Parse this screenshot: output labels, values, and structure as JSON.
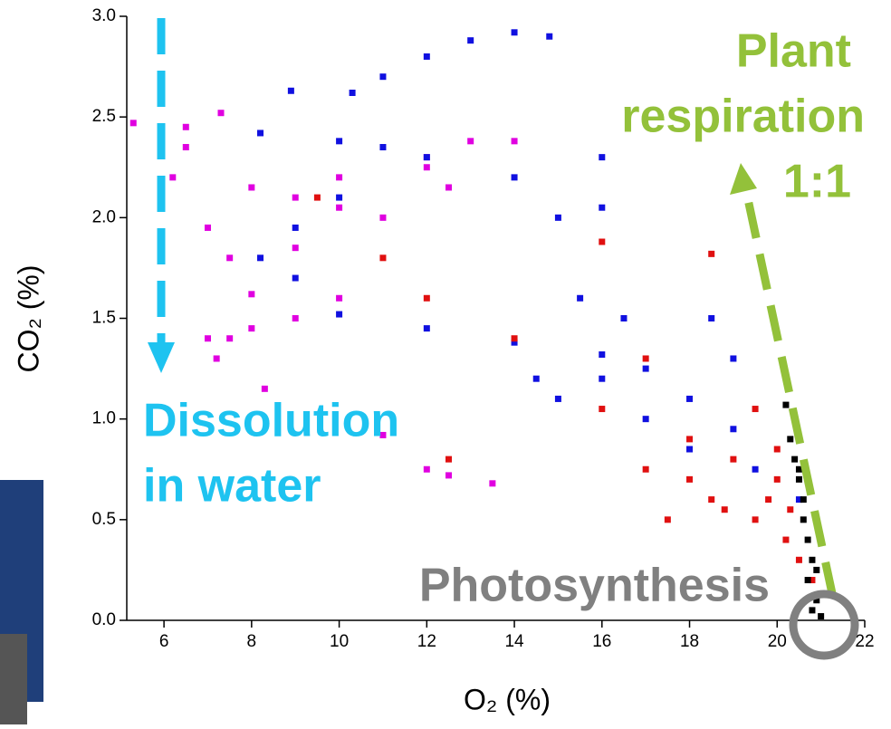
{
  "chart_data": {
    "type": "scatter",
    "x_label": "O₂ (%)",
    "y_label": "CO₂ (%)",
    "annotations": [
      "Plant",
      "respiration",
      "1:1",
      "Dissolution",
      "in water",
      "Photosynthesis"
    ],
    "xlim": [
      5.15,
      22
    ],
    "ylim": [
      0,
      3
    ],
    "xticks": [
      6,
      8,
      10,
      12,
      14,
      16,
      18,
      20,
      22
    ],
    "yticks": [
      {
        "value": 0,
        "label": "0.0"
      },
      {
        "value": 0.5,
        "label": "0.5"
      },
      {
        "value": 1,
        "label": "1.0"
      },
      {
        "value": 1.5,
        "label": "1.5"
      },
      {
        "value": 2,
        "label": "2.0"
      },
      {
        "value": 2.5,
        "label": "2.5"
      },
      {
        "value": 3,
        "label": "3.0"
      }
    ],
    "series": [
      {
        "color": "#e000e0",
        "x": [
          5.3,
          6.5,
          7.3,
          6.5,
          6.2,
          8,
          10,
          12,
          13,
          14,
          12,
          9,
          10,
          12.5,
          11,
          7,
          7.5,
          9,
          10,
          9,
          8,
          7.5,
          7.2,
          8,
          8.3,
          7,
          11,
          12,
          13.5,
          12.5
        ],
        "values": [
          2.47,
          2.45,
          2.52,
          2.35,
          2.2,
          2.15,
          2.2,
          2.25,
          2.38,
          2.38,
          2.3,
          2.1,
          2.05,
          2.15,
          2.0,
          1.95,
          1.8,
          1.85,
          1.6,
          1.5,
          1.62,
          1.4,
          1.3,
          1.45,
          1.15,
          1.4,
          0.92,
          0.75,
          0.68,
          0.72
        ]
      },
      {
        "color": "#1010e0",
        "x": [
          14.8,
          14,
          13,
          12,
          11,
          10.3,
          8.9,
          11,
          10,
          9,
          8.2,
          9,
          10,
          12,
          14,
          16,
          19,
          16,
          15,
          14.5,
          17,
          18,
          19.5,
          20.5,
          8.2,
          10,
          12,
          14,
          16,
          18.5,
          16,
          15,
          15.5,
          16.5,
          17,
          18,
          19
        ],
        "values": [
          2.9,
          2.92,
          2.88,
          2.8,
          2.7,
          2.62,
          2.63,
          2.35,
          2.1,
          1.95,
          1.8,
          1.7,
          1.52,
          1.45,
          1.38,
          1.32,
          1.3,
          1.2,
          1.1,
          1.2,
          1.0,
          0.85,
          0.75,
          0.6,
          2.42,
          2.38,
          2.3,
          2.2,
          2.05,
          1.5,
          2.3,
          2.0,
          1.6,
          1.5,
          1.25,
          1.1,
          0.95
        ]
      },
      {
        "color": "#e01010",
        "x": [
          9.5,
          11,
          12,
          16,
          18.5,
          14,
          17,
          19.5,
          16,
          18,
          19,
          20,
          18.5,
          19.5,
          20.2,
          20.5,
          17.5,
          18,
          20.8,
          19.8,
          12.5,
          20,
          18.8,
          17,
          20.3
        ],
        "values": [
          2.1,
          1.8,
          1.6,
          1.88,
          1.82,
          1.4,
          1.3,
          1.05,
          1.05,
          0.9,
          0.8,
          0.7,
          0.6,
          0.5,
          0.4,
          0.3,
          0.5,
          0.7,
          0.2,
          0.6,
          0.8,
          0.85,
          0.55,
          0.75,
          0.55
        ]
      },
      {
        "color": "#000000",
        "x": [
          20.2,
          20.3,
          20.4,
          20.5,
          20.6,
          20.6,
          20.7,
          20.8,
          20.7,
          20.9,
          20.8,
          21,
          20.5,
          20.9
        ],
        "values": [
          1.07,
          0.9,
          0.8,
          0.7,
          0.6,
          0.5,
          0.4,
          0.3,
          0.2,
          0.1,
          0.05,
          0.02,
          0.75,
          0.25
        ]
      }
    ]
  }
}
